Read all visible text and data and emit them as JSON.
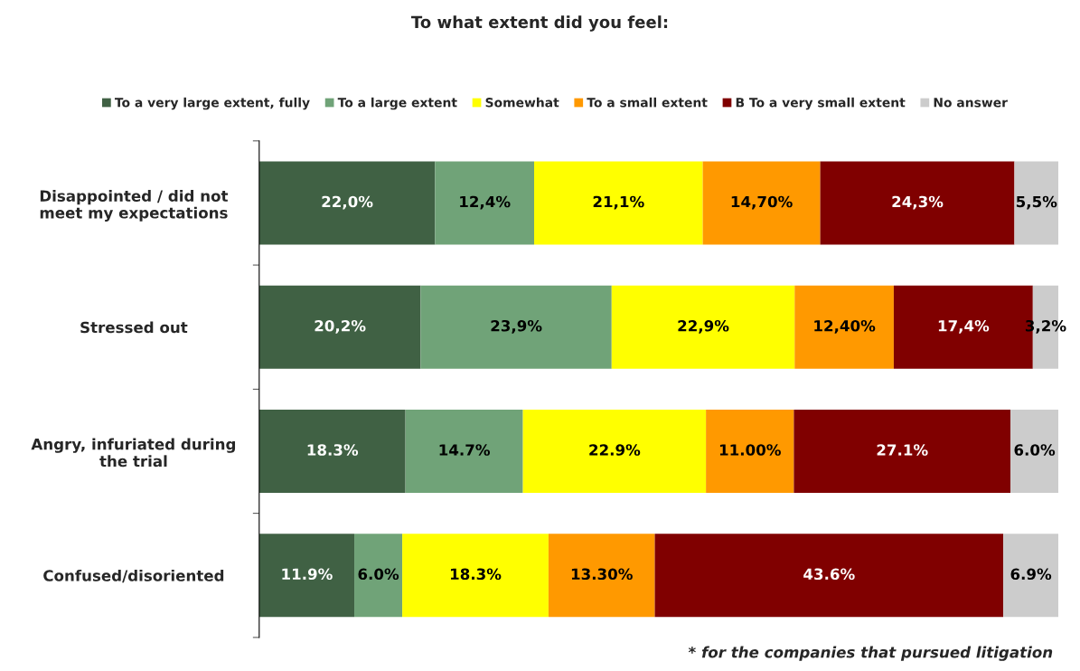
{
  "chart_data": {
    "type": "bar",
    "orientation": "horizontal",
    "stacked": true,
    "title": "To what extent did you feel:",
    "categories": [
      "Disappointed / did not meet my expectations",
      "Stressed out",
      "Angry, infuriated during the trial",
      "Confused/disoriented"
    ],
    "series": [
      {
        "name": "To a very large extent, fully",
        "color": "#406144",
        "values": [
          22.0,
          20.2,
          18.3,
          11.9
        ],
        "value_labels": [
          "22,0%",
          "20,2%",
          "18.3%",
          "11.9%"
        ]
      },
      {
        "name": "To a large extent",
        "color": "#70a378",
        "values": [
          12.4,
          23.9,
          14.7,
          6.0
        ],
        "value_labels": [
          "12,4%",
          "23,9%",
          "14.7%",
          "6.0%"
        ]
      },
      {
        "name": "Somewhat",
        "color": "#ffff00",
        "values": [
          21.1,
          22.9,
          22.9,
          18.3
        ],
        "value_labels": [
          "21,1%",
          "22,9%",
          "22.9%",
          "18.3%"
        ]
      },
      {
        "name": "To a small extent",
        "color": "#ff9900",
        "values": [
          14.7,
          12.4,
          11.0,
          13.3
        ],
        "value_labels": [
          "14,70%",
          "12,40%",
          "11.00%",
          "13.30%"
        ]
      },
      {
        "name": "B To a very small extent",
        "color": "#800000",
        "values": [
          24.3,
          17.4,
          27.1,
          43.6
        ],
        "value_labels": [
          "24,3%",
          "17,4%",
          "27.1%",
          "43.6%"
        ]
      },
      {
        "name": "No answer",
        "color": "#cccccc",
        "values": [
          5.5,
          3.2,
          6.0,
          6.9
        ],
        "value_labels": [
          "5,5%",
          "3,2%",
          "6.0%",
          "6.9%"
        ]
      }
    ],
    "xlim": [
      0,
      100
    ],
    "tick_labels": "y",
    "legend": "top",
    "grid": false,
    "annotations": [
      "* for the companies that pursued litigation"
    ]
  }
}
